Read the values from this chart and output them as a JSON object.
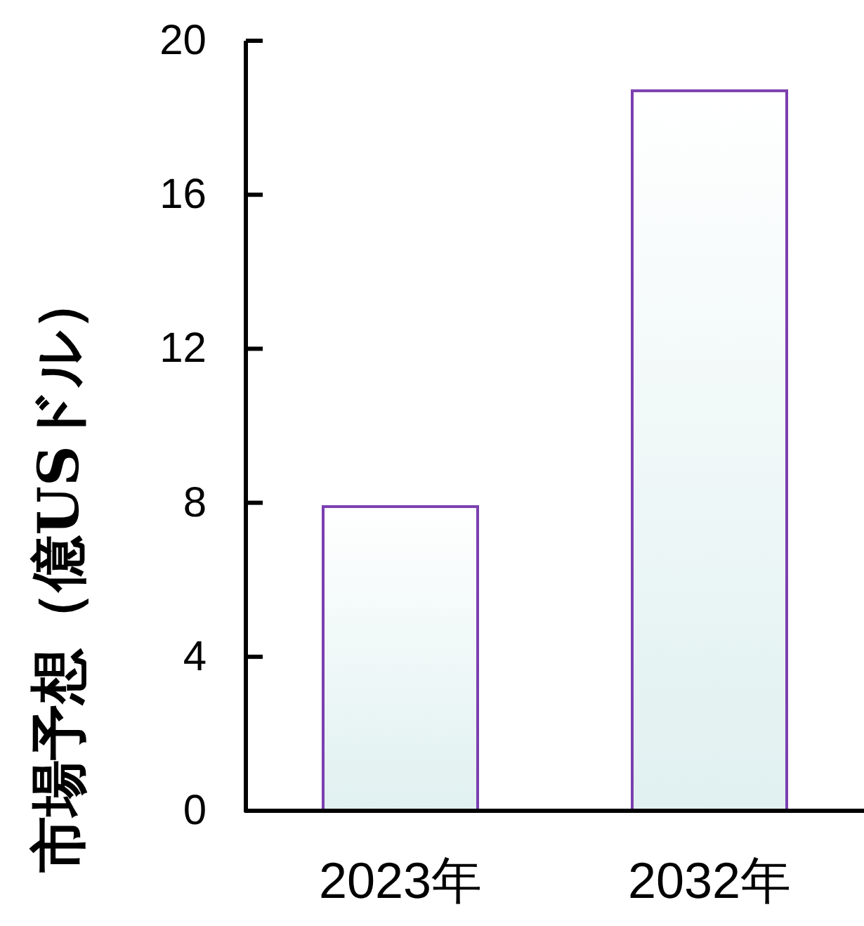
{
  "chart_data": {
    "type": "bar",
    "ylabel": "市場予想（億USドル）",
    "categories": [
      "2023年",
      "2032年"
    ],
    "values": [
      7.9,
      18.7
    ],
    "color": "#7b3fb0",
    "ylim": [
      0,
      20
    ],
    "yticks": [
      0,
      4,
      8,
      12,
      16,
      20
    ],
    "grid": false
  }
}
